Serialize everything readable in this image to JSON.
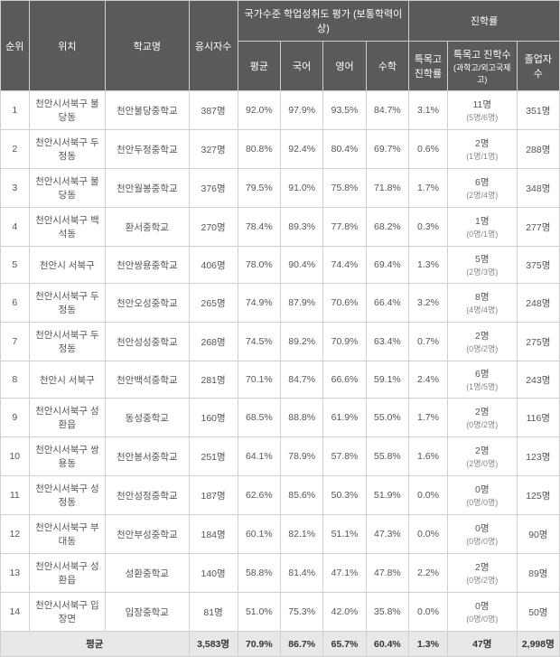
{
  "headers": {
    "rank": "순위",
    "location": "위치",
    "school": "학교명",
    "testCount": "응시자수",
    "evalGroup": "국가수준 학업성취도 평가 (보통학력이상)",
    "avg": "평균",
    "korean": "국어",
    "english": "영어",
    "math": "수학",
    "admGroup": "진학률",
    "specRate": "특목고 진학률",
    "specCount": "특목고 진학수",
    "specCountSub": "(과학고/외고국제고)",
    "gradCount": "졸업자 수"
  },
  "rows": [
    {
      "rank": "1",
      "loc": "천안시서북구 불당동",
      "name": "천안불당중학교",
      "cnt": "387명",
      "avg": "92.0%",
      "kor": "97.9%",
      "eng": "93.5%",
      "math": "84.7%",
      "sr": "3.1%",
      "sc": "11명",
      "scSub": "(5명/6명)",
      "grad": "351명"
    },
    {
      "rank": "2",
      "loc": "천안시서북구 두정동",
      "name": "천안두정중학교",
      "cnt": "327명",
      "avg": "80.8%",
      "kor": "92.4%",
      "eng": "80.4%",
      "math": "69.7%",
      "sr": "0.6%",
      "sc": "2명",
      "scSub": "(1명/1명)",
      "grad": "288명"
    },
    {
      "rank": "3",
      "loc": "천안시서북구 불당동",
      "name": "천안월봉중학교",
      "cnt": "376명",
      "avg": "79.5%",
      "kor": "91.0%",
      "eng": "75.8%",
      "math": "71.8%",
      "sr": "1.7%",
      "sc": "6명",
      "scSub": "(2명/4명)",
      "grad": "348명"
    },
    {
      "rank": "4",
      "loc": "천안시서북구 백석동",
      "name": "환서중학교",
      "cnt": "270명",
      "avg": "78.4%",
      "kor": "89.3%",
      "eng": "77.8%",
      "math": "68.2%",
      "sr": "0.3%",
      "sc": "1명",
      "scSub": "(0명/1명)",
      "grad": "277명"
    },
    {
      "rank": "5",
      "loc": "천안시 서북구",
      "name": "천안쌍용중학교",
      "cnt": "406명",
      "avg": "78.0%",
      "kor": "90.4%",
      "eng": "74.4%",
      "math": "69.4%",
      "sr": "1.3%",
      "sc": "5명",
      "scSub": "(2명/3명)",
      "grad": "375명"
    },
    {
      "rank": "6",
      "loc": "천안시서북구 두정동",
      "name": "천안오성중학교",
      "cnt": "265명",
      "avg": "74.9%",
      "kor": "87.9%",
      "eng": "70.6%",
      "math": "66.4%",
      "sr": "3.2%",
      "sc": "8명",
      "scSub": "(4명/4명)",
      "grad": "248명"
    },
    {
      "rank": "7",
      "loc": "천안시서북구 두정동",
      "name": "천안성성중학교",
      "cnt": "268명",
      "avg": "74.5%",
      "kor": "89.2%",
      "eng": "70.9%",
      "math": "63.4%",
      "sr": "0.7%",
      "sc": "2명",
      "scSub": "(0명/2명)",
      "grad": "275명"
    },
    {
      "rank": "8",
      "loc": "천안시 서북구",
      "name": "천안백석중학교",
      "cnt": "281명",
      "avg": "70.1%",
      "kor": "84.7%",
      "eng": "66.6%",
      "math": "59.1%",
      "sr": "2.4%",
      "sc": "6명",
      "scSub": "(1명/5명)",
      "grad": "243명"
    },
    {
      "rank": "9",
      "loc": "천안시서북구 성환읍",
      "name": "동성중학교",
      "cnt": "160명",
      "avg": "68.5%",
      "kor": "88.8%",
      "eng": "61.9%",
      "math": "55.0%",
      "sr": "1.7%",
      "sc": "2명",
      "scSub": "(0명/2명)",
      "grad": "116명"
    },
    {
      "rank": "10",
      "loc": "천안시서북구 쌍용동",
      "name": "천안봉서중학교",
      "cnt": "251명",
      "avg": "64.1%",
      "kor": "78.9%",
      "eng": "57.8%",
      "math": "55.8%",
      "sr": "1.6%",
      "sc": "2명",
      "scSub": "(2명/0명)",
      "grad": "123명"
    },
    {
      "rank": "11",
      "loc": "천안시서북구 성정동",
      "name": "천안성정중학교",
      "cnt": "187명",
      "avg": "62.6%",
      "kor": "85.6%",
      "eng": "50.3%",
      "math": "51.9%",
      "sr": "0.0%",
      "sc": "0명",
      "scSub": "(0명/0명)",
      "grad": "125명"
    },
    {
      "rank": "12",
      "loc": "천안시서북구 부대동",
      "name": "천안부성중학교",
      "cnt": "184명",
      "avg": "60.1%",
      "kor": "82.1%",
      "eng": "51.1%",
      "math": "47.3%",
      "sr": "0.0%",
      "sc": "0명",
      "scSub": "(0명/0명)",
      "grad": "90명"
    },
    {
      "rank": "13",
      "loc": "천안시서북구 성환읍",
      "name": "성환중학교",
      "cnt": "140명",
      "avg": "58.8%",
      "kor": "81.4%",
      "eng": "47.1%",
      "math": "47.8%",
      "sr": "2.2%",
      "sc": "2명",
      "scSub": "(0명/2명)",
      "grad": "89명"
    },
    {
      "rank": "14",
      "loc": "천안시서북구 입장면",
      "name": "입장중학교",
      "cnt": "81명",
      "avg": "51.0%",
      "kor": "75.3%",
      "eng": "42.0%",
      "math": "35.8%",
      "sr": "0.0%",
      "sc": "0명",
      "scSub": "(0명/0명)",
      "grad": "50명"
    }
  ],
  "summary": {
    "label": "평균",
    "cnt": "3,583명",
    "avg": "70.9%",
    "kor": "86.7%",
    "eng": "65.7%",
    "math": "60.4%",
    "sr": "1.3%",
    "sc": "47명",
    "grad": "2,998명"
  }
}
